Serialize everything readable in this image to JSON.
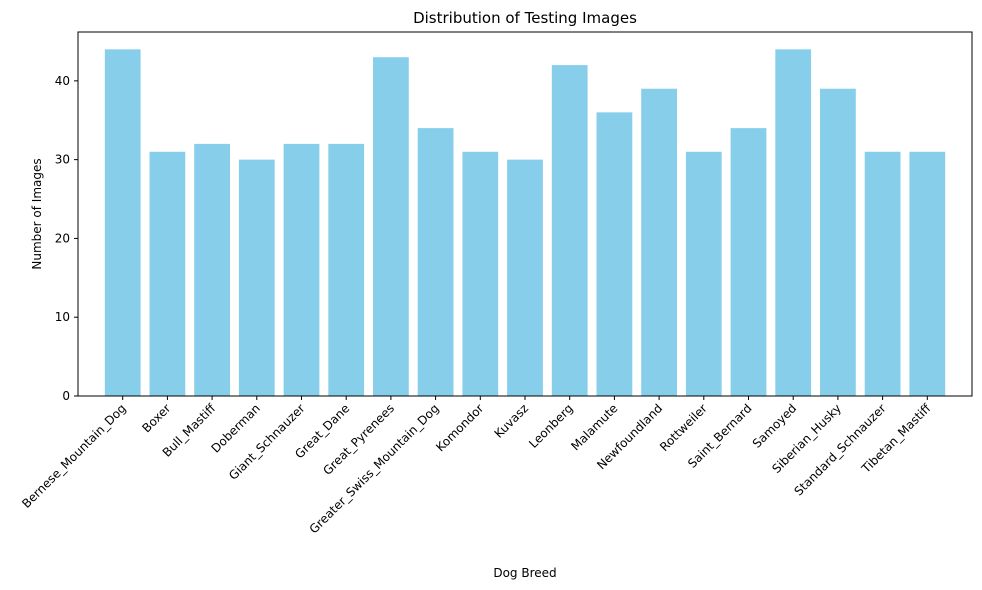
{
  "chart_data": {
    "type": "bar",
    "title": "Distribution of Testing Images",
    "xlabel": "Dog Breed",
    "ylabel": "Number of Images",
    "categories": [
      "Bernese_Mountain_Dog",
      "Boxer",
      "Bull_Mastiff",
      "Doberman",
      "Giant_Schnauzer",
      "Great_Dane",
      "Great_Pyrenees",
      "Greater_Swiss_Mountain_Dog",
      "Komondor",
      "Kuvasz",
      "Leonberg",
      "Malamute",
      "Newfoundland",
      "Rottweiler",
      "Saint_Bernard",
      "Samoyed",
      "Siberian_Husky",
      "Standard_Schnauzer",
      "Tibetan_Mastiff"
    ],
    "values": [
      44,
      31,
      32,
      30,
      32,
      32,
      43,
      34,
      31,
      30,
      42,
      36,
      39,
      31,
      34,
      44,
      39,
      31,
      31
    ],
    "yticks": [
      0,
      10,
      20,
      30,
      40
    ],
    "ylim": [
      0,
      46.2
    ],
    "bar_color": "#87CEEB",
    "grid": false,
    "legend": false
  }
}
